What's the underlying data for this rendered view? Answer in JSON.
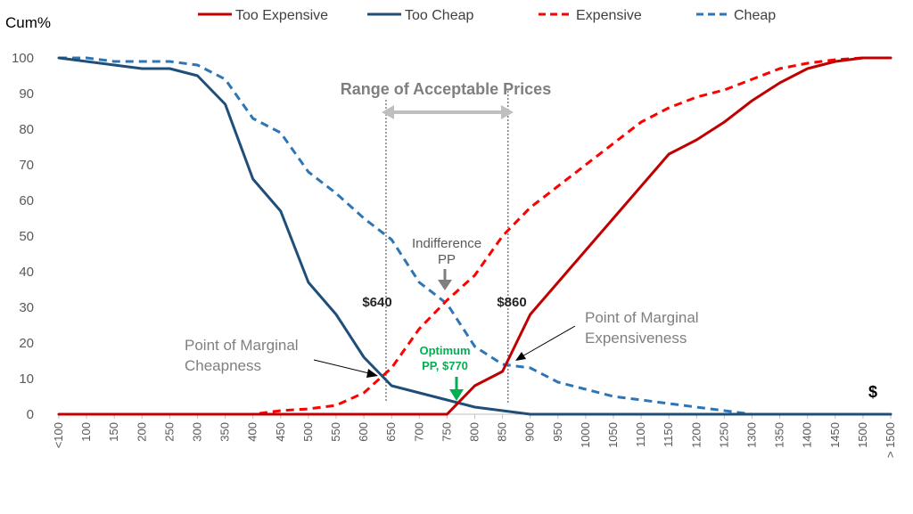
{
  "chart_data": {
    "type": "line",
    "ylabel": "Cum%",
    "xlabel": "$",
    "ylim": [
      0,
      100
    ],
    "yticks": [
      0,
      10,
      20,
      30,
      40,
      50,
      60,
      70,
      80,
      90,
      100
    ],
    "x": [
      "<100",
      "100",
      "150",
      "200",
      "250",
      "300",
      "350",
      "400",
      "450",
      "500",
      "550",
      "600",
      "650",
      "700",
      "750",
      "800",
      "850",
      "900",
      "950",
      "1000",
      "1050",
      "1100",
      "1150",
      "1200",
      "1250",
      "1300",
      "1350",
      "1400",
      "1450",
      "1500",
      "> 1500"
    ],
    "legend_position": "top",
    "series": [
      {
        "name": "Too Expensive",
        "color": "#c00000",
        "dash": "solid",
        "values": [
          0,
          0,
          0,
          0,
          0,
          0,
          0,
          0,
          0,
          0,
          0,
          0,
          0,
          0,
          0,
          8,
          12,
          28,
          37,
          46,
          55,
          64,
          73,
          77,
          82,
          88,
          93,
          97,
          99,
          100,
          100
        ]
      },
      {
        "name": "Too Cheap",
        "color": "#1f4e79",
        "dash": "solid",
        "values": [
          100,
          99,
          98,
          97,
          97,
          95,
          87,
          66,
          57,
          37,
          28,
          16,
          8,
          6,
          4,
          2,
          1,
          0,
          0,
          0,
          0,
          0,
          0,
          0,
          0,
          0,
          0,
          0,
          0,
          0,
          0
        ]
      },
      {
        "name": "Expensive",
        "color": "#ff0000",
        "dash": "dashed",
        "values": [
          0,
          0,
          0,
          0,
          0,
          0,
          0,
          0,
          1,
          1.5,
          2.5,
          6,
          13,
          24,
          32,
          39,
          50,
          58,
          64,
          70,
          76,
          82,
          86,
          89,
          91,
          94,
          97,
          98.5,
          99.5,
          100,
          100
        ]
      },
      {
        "name": "Cheap",
        "color": "#2e75b6",
        "dash": "dashed",
        "values": [
          100,
          100,
          99,
          99,
          99,
          98,
          94,
          83,
          79,
          68,
          62,
          55,
          49,
          37,
          31,
          19,
          14,
          13,
          9,
          7,
          5,
          4,
          3,
          2,
          1,
          0,
          0,
          0,
          0,
          0,
          0
        ]
      }
    ],
    "annotations": {
      "range_title": "Range of Acceptable Prices",
      "label_640": "$640",
      "label_860": "$860",
      "indifference_line1": "Indifference",
      "indifference_line2": "PP",
      "pmc_line1": "Point of Marginal",
      "pmc_line2": "Cheapness",
      "pme_line1": "Point of Marginal",
      "pme_line2": "Expensiveness",
      "optimum_line1": "Optimum",
      "optimum_line2": "PP, $770",
      "dollar": "$"
    },
    "colors": {
      "axis": "#bfbfbf",
      "annotation_grey": "#a6a6a6",
      "optimum_green": "#00b050",
      "guide_line": "#404040"
    }
  }
}
